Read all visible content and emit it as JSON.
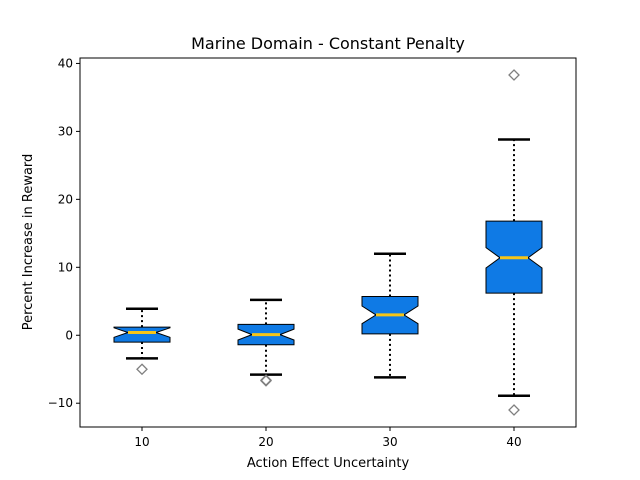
{
  "chart_data": {
    "type": "boxplot",
    "title": "Marine Domain - Constant Penalty",
    "xlabel": "Action Effect Uncertainty",
    "ylabel": "Percent Increase in Reward",
    "categories": [
      "10",
      "20",
      "30",
      "40"
    ],
    "ylim": [
      -13.5,
      40.8
    ],
    "yticks": [
      -10,
      0,
      10,
      20,
      30,
      40
    ],
    "yticklabels": [
      "−10",
      "0",
      "10",
      "20",
      "30",
      "40"
    ],
    "notched": true,
    "grid": false,
    "colors": {
      "box_fill": "#0f7ae5",
      "median": "#f5c518",
      "outlier": "#808080",
      "edge": "#000000"
    },
    "boxes": [
      {
        "category": "10",
        "whisker_low": -3.4,
        "q1": -1.0,
        "median": 0.4,
        "q3": 1.2,
        "whisker_high": 3.9,
        "notch_low": -0.3,
        "notch_high": 1.1,
        "outliers": [
          -5.0
        ]
      },
      {
        "category": "20",
        "whisker_low": -5.8,
        "q1": -1.4,
        "median": 0.1,
        "q3": 1.6,
        "whisker_high": 5.2,
        "notch_low": -0.7,
        "notch_high": 0.9,
        "outliers": [
          -6.6,
          -6.7
        ]
      },
      {
        "category": "30",
        "whisker_low": -6.2,
        "q1": 0.2,
        "median": 3.0,
        "q3": 5.7,
        "whisker_high": 12.0,
        "notch_low": 1.7,
        "notch_high": 4.3,
        "outliers": []
      },
      {
        "category": "40",
        "whisker_low": -8.9,
        "q1": 6.2,
        "median": 11.4,
        "q3": 16.8,
        "whisker_high": 28.8,
        "notch_low": 9.9,
        "notch_high": 12.9,
        "outliers": [
          38.3,
          -11.0
        ]
      }
    ]
  }
}
